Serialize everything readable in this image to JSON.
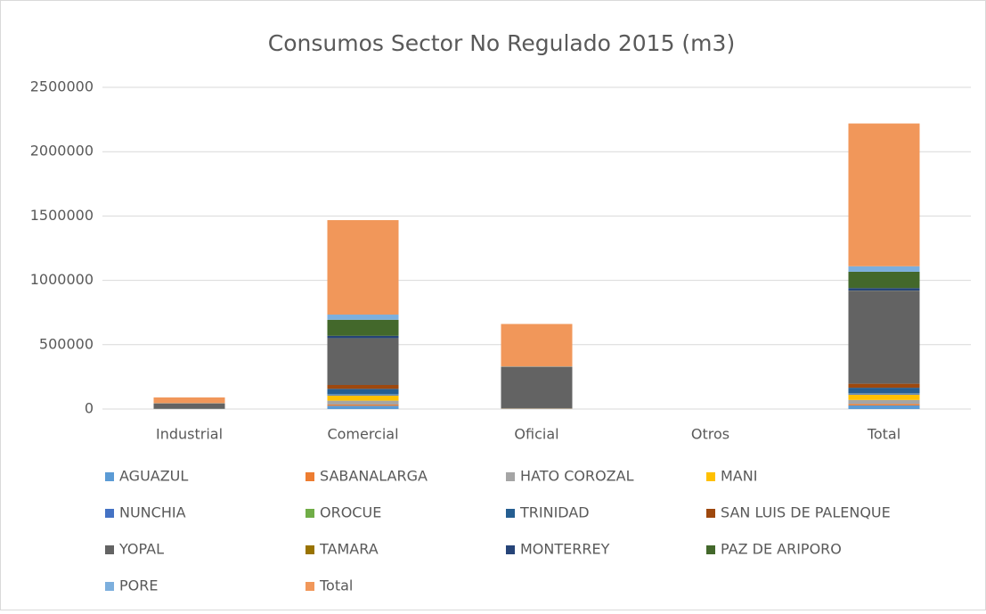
{
  "chart_data": {
    "type": "stacked_bar",
    "title": "Consumos Sector No Regulado 2015 (m3)",
    "categories": [
      "Industrial",
      "Comercial",
      "Oficial",
      "Otros",
      "Total"
    ],
    "series": [
      {
        "name": "AGUAZUL",
        "color": "#5b9bd5",
        "values": [
          1000,
          25000,
          2000,
          0,
          28000
        ]
      },
      {
        "name": "SABANALARGA",
        "color": "#ed7d31",
        "values": [
          0,
          10000,
          1000,
          0,
          11000
        ]
      },
      {
        "name": "HATO COROZAL",
        "color": "#a5a5a5",
        "values": [
          500,
          30000,
          1000,
          0,
          31500
        ]
      },
      {
        "name": "MANI",
        "color": "#ffc000",
        "values": [
          500,
          40000,
          1000,
          0,
          41500
        ]
      },
      {
        "name": "NUNCHIA",
        "color": "#4472c4",
        "values": [
          0,
          10000,
          0,
          0,
          10000
        ]
      },
      {
        "name": "OROCUE",
        "color": "#70ad47",
        "values": [
          0,
          2000,
          0,
          0,
          2000
        ]
      },
      {
        "name": "TRINIDAD",
        "color": "#255e91",
        "values": [
          500,
          40000,
          1000,
          0,
          41500
        ]
      },
      {
        "name": "SAN LUIS DE PALENQUE",
        "color": "#9e480e",
        "values": [
          0,
          30000,
          1000,
          0,
          31000
        ]
      },
      {
        "name": "YOPAL",
        "color": "#636363",
        "values": [
          40000,
          360000,
          320000,
          0,
          720000
        ]
      },
      {
        "name": "TAMARA",
        "color": "#997300",
        "values": [
          0,
          2000,
          0,
          0,
          2000
        ]
      },
      {
        "name": "MONTERREY",
        "color": "#264478",
        "values": [
          500,
          20000,
          1000,
          0,
          21500
        ]
      },
      {
        "name": "PAZ DE ARIPORO",
        "color": "#43682b",
        "values": [
          1000,
          125000,
          1000,
          0,
          127000
        ]
      },
      {
        "name": "PORE",
        "color": "#7cafdd",
        "values": [
          1000,
          40000,
          1500,
          0,
          42500
        ]
      },
      {
        "name": "Total",
        "color": "#f1975a",
        "values": [
          45000,
          734000,
          330500,
          0,
          1109500
        ]
      }
    ],
    "ylim": [
      0,
      2500000
    ],
    "yticks": [
      0,
      500000,
      1000000,
      1500000,
      2000000,
      2500000
    ],
    "grid": true,
    "legend": "bottom"
  }
}
